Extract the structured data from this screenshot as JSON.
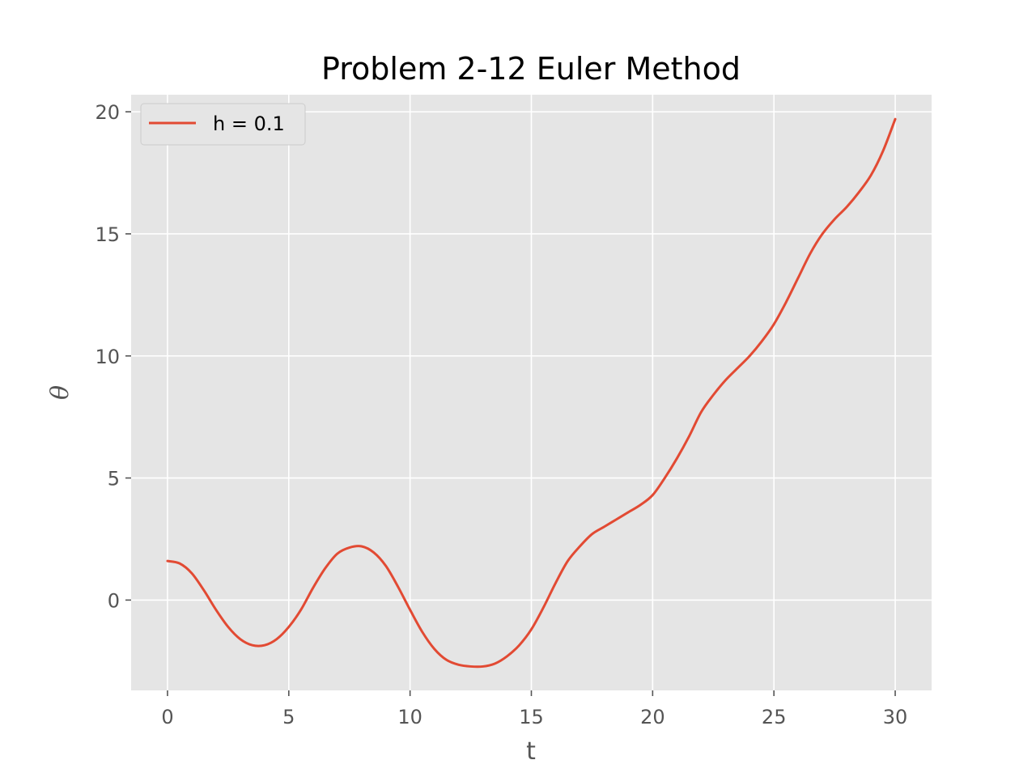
{
  "chart_data": {
    "type": "line",
    "title": "Problem 2-12 Euler Method",
    "xlabel": "t",
    "ylabel": "θ",
    "xlim": [
      -1.5,
      31.5
    ],
    "ylim": [
      -3.7,
      20.7
    ],
    "xticks": [
      0,
      5,
      10,
      15,
      20,
      25,
      30
    ],
    "yticks": [
      0,
      5,
      10,
      15,
      20
    ],
    "xtick_labels": [
      "0",
      "5",
      "10",
      "15",
      "20",
      "25",
      "30"
    ],
    "ytick_labels": [
      "0",
      "5",
      "10",
      "15",
      "20"
    ],
    "grid": true,
    "legend_position": "top-left",
    "series": [
      {
        "name": "h = 0.1",
        "color": "#E24A33",
        "x": [
          0,
          0.5,
          1,
          1.5,
          2,
          2.5,
          3,
          3.5,
          4,
          4.5,
          5,
          5.5,
          6,
          6.5,
          7,
          7.5,
          8,
          8.5,
          9,
          9.5,
          10,
          10.5,
          11,
          11.5,
          12,
          12.5,
          13,
          13.5,
          14,
          14.5,
          15,
          15.5,
          16,
          16.5,
          17,
          17.5,
          18,
          18.5,
          19,
          19.5,
          20,
          20.5,
          21,
          21.5,
          22,
          22.5,
          23,
          23.5,
          24,
          24.5,
          25,
          25.5,
          26,
          26.5,
          27,
          27.5,
          28,
          28.5,
          29,
          29.5,
          30
        ],
        "y": [
          1.6,
          1.5,
          1.1,
          0.4,
          -0.4,
          -1.1,
          -1.6,
          -1.85,
          -1.85,
          -1.6,
          -1.1,
          -0.4,
          0.5,
          1.3,
          1.9,
          2.15,
          2.2,
          1.95,
          1.4,
          0.55,
          -0.4,
          -1.3,
          -2.0,
          -2.45,
          -2.65,
          -2.72,
          -2.72,
          -2.6,
          -2.3,
          -1.85,
          -1.2,
          -0.3,
          0.7,
          1.6,
          2.2,
          2.7,
          3.0,
          3.3,
          3.6,
          3.9,
          4.3,
          5.0,
          5.8,
          6.7,
          7.7,
          8.4,
          9.0,
          9.5,
          10.0,
          10.6,
          11.3,
          12.2,
          13.2,
          14.2,
          15.0,
          15.6,
          16.1,
          16.7,
          17.4,
          18.4,
          19.7
        ]
      }
    ]
  }
}
